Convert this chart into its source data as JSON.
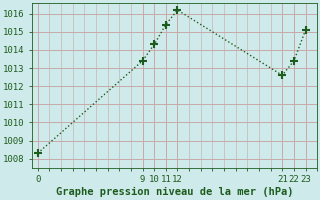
{
  "x": [
    0,
    9,
    10,
    11,
    12,
    21,
    22,
    23
  ],
  "y": [
    1008.3,
    1013.4,
    1014.3,
    1015.4,
    1016.2,
    1012.6,
    1013.4,
    1015.1
  ],
  "line_color": "#1e5c1e",
  "marker": "+",
  "marker_size": 6,
  "marker_lw": 1.5,
  "bg_color": "#ceeaea",
  "grid_color": "#c8a8a8",
  "xlabel": "Graphe pression niveau de la mer (hPa)",
  "xlabel_fontsize": 7.5,
  "ylabel_ticks": [
    1008,
    1009,
    1010,
    1011,
    1012,
    1013,
    1014,
    1015,
    1016
  ],
  "xticks": [
    0,
    9,
    10,
    11,
    12,
    21,
    22,
    23
  ],
  "xlim": [
    -0.5,
    24
  ],
  "ylim": [
    1007.5,
    1016.6
  ],
  "tick_fontsize": 6.5,
  "line_width": 1.0,
  "line_style": ":"
}
